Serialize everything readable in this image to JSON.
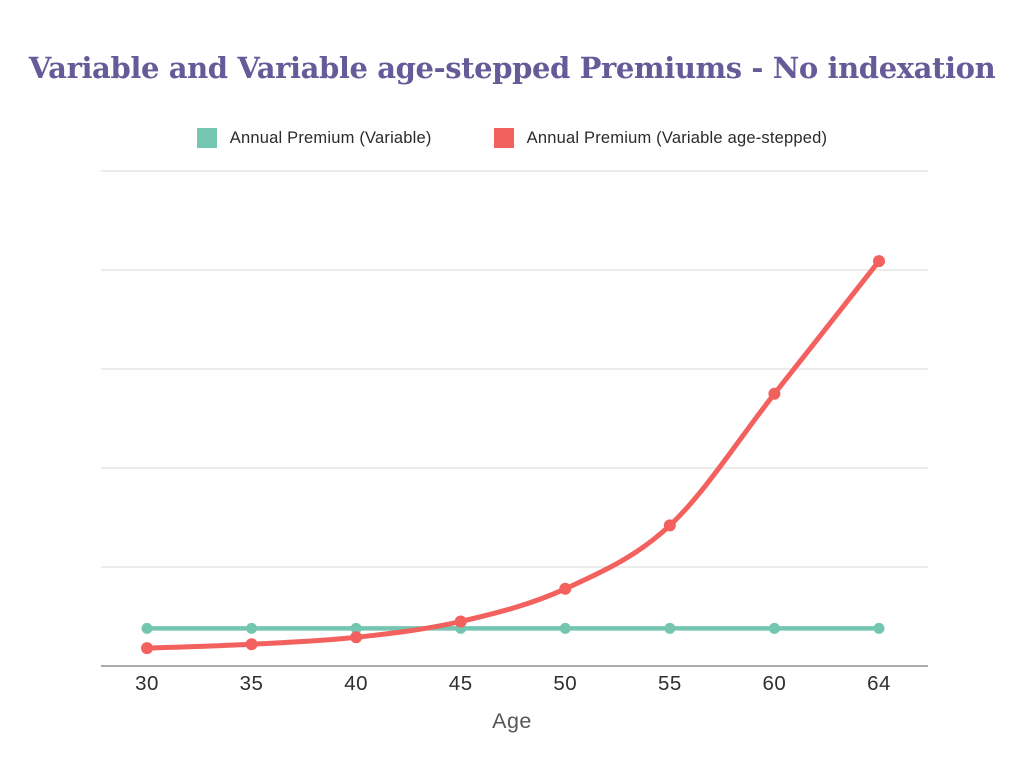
{
  "colors": {
    "background": "#ffffff",
    "title": "#675a99",
    "legend_text": "#2b2b2b",
    "tick_text": "#2f2f2f",
    "axis_label_text": "#565656",
    "gridline": "#e1e1e1",
    "axis_line": "#8f8f8f"
  },
  "chart_data": {
    "type": "line",
    "title": "Variable and Variable age-stepped Premiums - No indexation",
    "xlabel": "Age",
    "ylabel": "",
    "categories": [
      "30",
      "35",
      "40",
      "45",
      "50",
      "55",
      "60",
      "64"
    ],
    "series": [
      {
        "name": "Annual Premium (Variable)",
        "color": "#74c6b1",
        "values": [
          0.38,
          0.38,
          0.38,
          0.38,
          0.38,
          0.38,
          0.38,
          0.38
        ]
      },
      {
        "name": "Annual Premium (Variable age-stepped)",
        "color": "#f2615e",
        "values": [
          0.18,
          0.22,
          0.29,
          0.45,
          0.78,
          1.42,
          2.75,
          4.09
        ]
      }
    ],
    "ylim": [
      0,
      5
    ],
    "y_axis": {
      "tick_labels_visible": false,
      "gridline_count": 5,
      "note": "Horizontal gridlines are unlabeled; series values estimated in gridline units (axis baseline = 0, one unit per gridline)."
    },
    "legend_position": "top",
    "grid": "horizontal",
    "markers": "circle"
  }
}
